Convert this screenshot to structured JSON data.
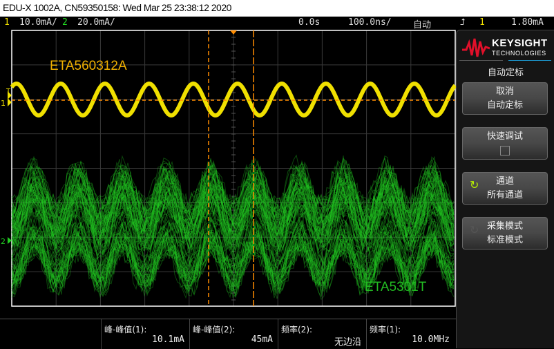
{
  "title": "EDU-X 1002A, CN59350158: Wed Mar 25 23:38:12 2020",
  "status": {
    "ch1_num": "1",
    "ch1_scale": "10.0mA/",
    "ch2_num": "2",
    "ch2_scale": "20.0mA/",
    "time_offset": "0.0s",
    "time_scale": "100.0ns/",
    "trigger_mode": "自动",
    "trigger_edge_icon": "rising-edge-icon",
    "trigger_source": "1",
    "trigger_level": "1.80mA"
  },
  "colors": {
    "ch1": "#f0e000",
    "ch2": "#22cc22",
    "cursor": "#ff8c00",
    "accent": "#1b8fc4"
  },
  "traces": {
    "ch1_label": "ETA560312A",
    "ch2_label": "ETA5301T"
  },
  "logo": {
    "brand": "KEYSIGHT",
    "sub": "TECHNOLOGIES"
  },
  "menu": {
    "title": "自动定标",
    "buttons": [
      {
        "line1": "取消",
        "line2": "自动定标"
      },
      {
        "line1": "快速调试",
        "checked": false
      },
      {
        "line1": "通道",
        "line2": "所有通道",
        "icon": "rotate-icon"
      },
      {
        "line1": "采集模式",
        "line2": "标准模式",
        "icon": "rotate-icon"
      }
    ]
  },
  "measurements": [
    {
      "label": "峰-峰值(1):",
      "value": "10.1mA"
    },
    {
      "label": "峰-峰值(2):",
      "value": "45mA"
    },
    {
      "label": "频率(2):",
      "value": "无边沿"
    },
    {
      "label": "频率(1):",
      "value": "10.0MHz"
    }
  ]
}
